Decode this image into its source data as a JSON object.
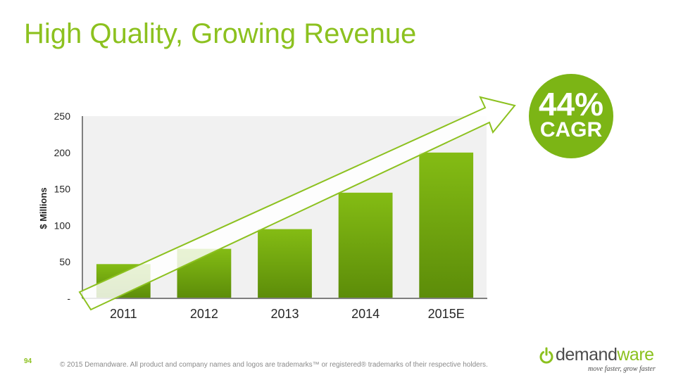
{
  "title": "High Quality, Growing Revenue",
  "chart_data": {
    "type": "bar",
    "categories": [
      "2011",
      "2012",
      "2013",
      "2014",
      "2015E"
    ],
    "values": [
      47,
      68,
      95,
      145,
      200
    ],
    "ylabel": "$ Millions",
    "xlabel": "",
    "ylim": [
      0,
      250
    ],
    "yticks": [
      {
        "value": 0,
        "label": "-"
      },
      {
        "value": 50,
        "label": "50"
      },
      {
        "value": 100,
        "label": "100"
      },
      {
        "value": 150,
        "label": "150"
      },
      {
        "value": 200,
        "label": "200"
      },
      {
        "value": 250,
        "label": "250"
      }
    ],
    "grid": false,
    "bar_color": "#7cb515",
    "annotation": {
      "value": "44%",
      "label": "CAGR"
    }
  },
  "footer": {
    "page_number": "94",
    "copyright": "© 2015 Demandware. All product and company names and logos are trademarks™ or registered® trademarks of their respective holders."
  },
  "logo": {
    "word_prefix": "demand",
    "word_suffix": "ware",
    "tagline": "move faster, grow faster"
  },
  "colors": {
    "accent": "#8cc11f",
    "bar_top": "#84bc14",
    "bar_bottom": "#5c8c09"
  }
}
